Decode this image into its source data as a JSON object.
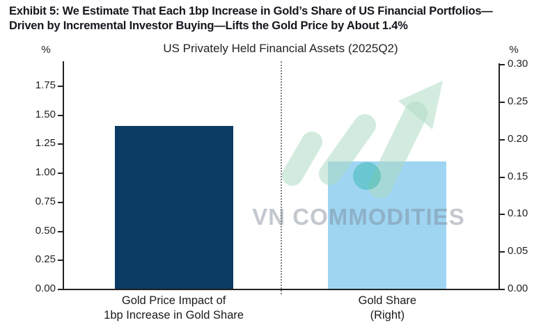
{
  "header": {
    "line1": "Exhibit 5: We Estimate That Each 1bp Increase in Gold’s Share of US Financial Portfolios—",
    "line2": "Driven by Incremental Investor Buying—Lifts the Gold Price by About 1.4%"
  },
  "watermark": {
    "text": "VN COMMODITIES"
  },
  "chart_data": {
    "type": "bar",
    "title": "US Privately Held Financial Assets (2025Q2)",
    "categories": [
      "Gold Price Impact of\n1bp Increase in Gold Share",
      "Gold Share\n(Right)"
    ],
    "bars": [
      {
        "label_lines": [
          "Gold Price Impact of",
          "1bp Increase in Gold Share"
        ],
        "axis": "left",
        "value": 1.4,
        "color": "#0b3a63"
      },
      {
        "label_lines": [
          "Gold Share",
          "(Right)"
        ],
        "axis": "right",
        "value": 0.17,
        "color": "#9fd5f2"
      }
    ],
    "left_axis": {
      "unit": "%",
      "ticks": [
        "0.00",
        "0.25",
        "0.50",
        "0.75",
        "1.00",
        "1.25",
        "1.50",
        "1.75"
      ],
      "max": 1.96
    },
    "right_axis": {
      "unit": "%",
      "ticks": [
        "0.00",
        "0.05",
        "0.10",
        "0.15",
        "0.20",
        "0.25",
        "0.30"
      ],
      "max": 0.304
    },
    "grid": false,
    "legend": "none",
    "separator": "dashed vertical line between categories"
  }
}
